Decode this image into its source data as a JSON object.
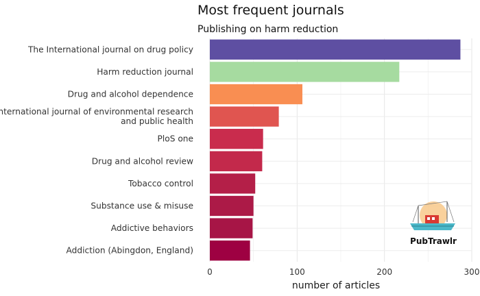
{
  "chart_data": {
    "type": "bar",
    "orientation": "horizontal",
    "title": "Most frequent journals",
    "subtitle": "Publishing on harm reduction",
    "xlabel": "number of articles",
    "ylabel": "",
    "xlim": [
      0,
      300
    ],
    "xticks": [
      0,
      100,
      200,
      300
    ],
    "grid": true,
    "categories": [
      "The International journal on drug policy",
      "Harm reduction journal",
      "Drug and alcohol dependence",
      "International journal of environmental research\nand public health",
      "PloS one",
      "Drug and alcohol review",
      "Tobacco control",
      "Substance use & misuse",
      "Addictive behaviors",
      "Addiction (Abingdon, England)"
    ],
    "values": [
      287,
      217,
      106,
      79,
      61,
      60,
      52,
      50,
      49,
      46
    ],
    "colors": [
      "#5e4fa2",
      "#a6dba0",
      "#f98e52",
      "#e05550",
      "#c92c4d",
      "#c3294b",
      "#b41f48",
      "#ac1a47",
      "#a71546",
      "#9e0142"
    ]
  },
  "logo": {
    "text": "PubTrawlr",
    "icon": "fishing-boat-icon"
  }
}
